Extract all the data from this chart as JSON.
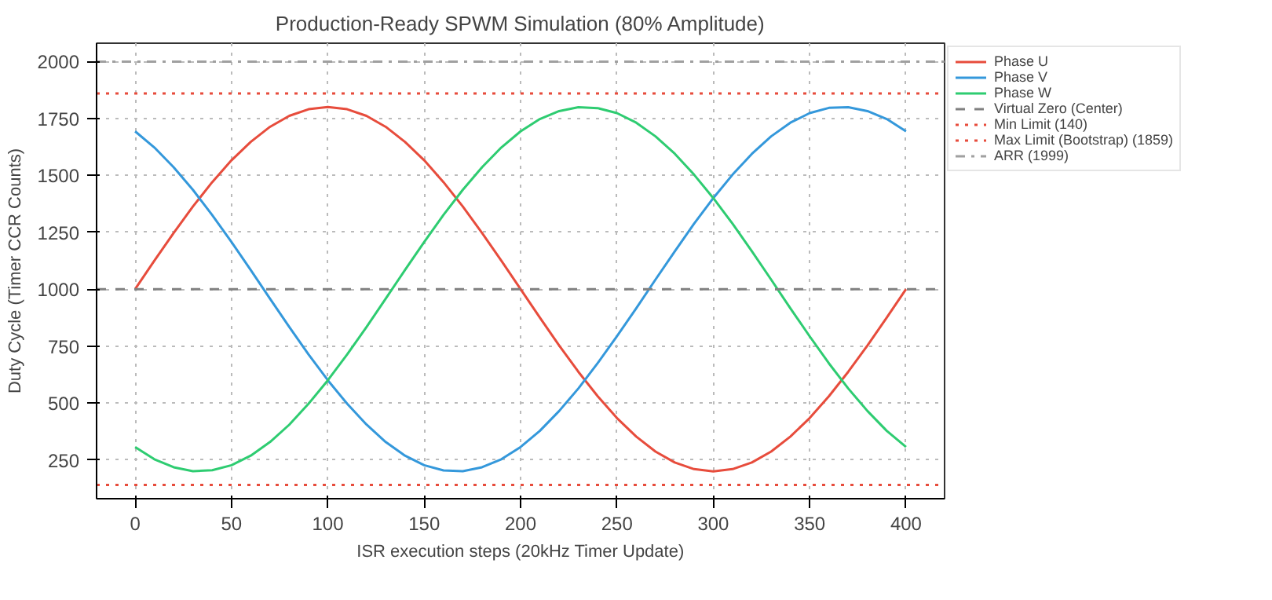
{
  "chart_data": {
    "type": "line",
    "title": "Production-Ready SPWM Simulation (80% Amplitude)",
    "xlabel": "ISR execution steps (20kHz Timer Update)",
    "ylabel": "Duty Cycle (Timer CCR Counts)",
    "x": [
      0,
      10,
      20,
      30,
      40,
      50,
      60,
      70,
      80,
      90,
      100,
      110,
      120,
      130,
      140,
      150,
      160,
      170,
      180,
      190,
      200,
      210,
      220,
      230,
      240,
      250,
      260,
      270,
      280,
      290,
      300,
      310,
      320,
      330,
      340,
      350,
      360,
      370,
      380,
      390,
      400
    ],
    "series": [
      {
        "name": "Phase U",
        "color": "#e74c3c",
        "values": [
          1000,
          1125,
          1247,
          1363,
          1470,
          1566,
          1647,
          1713,
          1761,
          1790,
          1800,
          1790,
          1761,
          1713,
          1647,
          1566,
          1470,
          1363,
          1247,
          1125,
          1000,
          875,
          753,
          637,
          530,
          434,
          353,
          287,
          239,
          210,
          200,
          210,
          239,
          287,
          353,
          434,
          530,
          637,
          753,
          875,
          1000
        ]
      },
      {
        "name": "Phase V",
        "color": "#3498db",
        "values": [
          1693,
          1622,
          1535,
          1436,
          1325,
          1207,
          1084,
          958,
          834,
          713,
          600,
          497,
          406,
          329,
          269,
          227,
          204,
          201,
          218,
          253,
          307,
          378,
          465,
          564,
          675,
          793,
          916,
          1042,
          1166,
          1287,
          1400,
          1503,
          1594,
          1671,
          1731,
          1773,
          1796,
          1799,
          1782,
          1747,
          1693
        ]
      },
      {
        "name": "Phase W",
        "color": "#2ecc71",
        "values": [
          307,
          253,
          218,
          201,
          205,
          227,
          269,
          329,
          405,
          497,
          600,
          713,
          833,
          958,
          1084,
          1207,
          1326,
          1436,
          1535,
          1622,
          1693,
          1747,
          1782,
          1799,
          1795,
          1773,
          1731,
          1671,
          1595,
          1503,
          1400,
          1287,
          1167,
          1042,
          916,
          793,
          674,
          564,
          465,
          378,
          307
        ]
      }
    ],
    "ref_lines": [
      {
        "axis": "y",
        "value": 1000,
        "label": "Virtual Zero (Center)",
        "color": "#808080",
        "line_style": "dashed"
      },
      {
        "axis": "y",
        "value": 140,
        "label": "Min Limit (140)",
        "color": "#e74c3c",
        "line_style": "dotted"
      },
      {
        "axis": "y",
        "value": 1859,
        "label": "Max Limit (Bootstrap) (1859)",
        "color": "#e74c3c",
        "line_style": "dotted"
      },
      {
        "axis": "y",
        "value": 1999,
        "label": "ARR (1999)",
        "color": "#a0a0a0",
        "line_style": "dashdot"
      }
    ],
    "xlim": [
      -20,
      420
    ],
    "xticks": [
      0,
      50,
      100,
      150,
      200,
      250,
      300,
      350,
      400
    ],
    "ylim": [
      80,
      2080
    ],
    "yticks": [
      250,
      500,
      750,
      1000,
      1250,
      1500,
      1750,
      2000
    ],
    "grid": true,
    "legend": "top right",
    "marker": "none",
    "line_style": "solid"
  }
}
